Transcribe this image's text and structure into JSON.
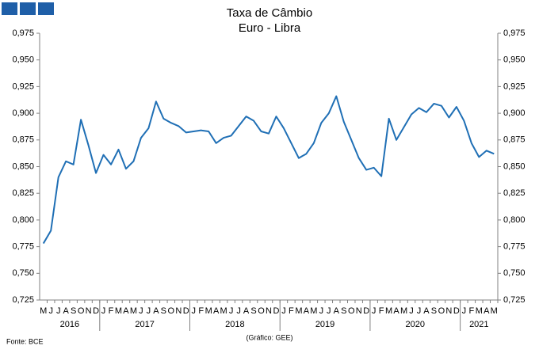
{
  "chart_data": {
    "type": "line",
    "title": "Taxa de Câmbio",
    "subtitle": "Euro - Libra",
    "source": "Fonte: BCE",
    "credit": "(Gráfico: GEE)",
    "categories": [
      "M",
      "J",
      "J",
      "A",
      "S",
      "O",
      "N",
      "D",
      "J",
      "F",
      "M",
      "A",
      "M",
      "J",
      "J",
      "A",
      "S",
      "O",
      "N",
      "D",
      "J",
      "F",
      "M",
      "A",
      "M",
      "J",
      "J",
      "A",
      "S",
      "O",
      "N",
      "D",
      "J",
      "F",
      "M",
      "A",
      "M",
      "J",
      "J",
      "A",
      "S",
      "O",
      "N",
      "D",
      "J",
      "F",
      "M",
      "A",
      "M",
      "J",
      "J",
      "A",
      "S",
      "O",
      "N",
      "D",
      "J",
      "F",
      "M",
      "A",
      "M"
    ],
    "years": [
      "2016",
      "2017",
      "2018",
      "2019",
      "2020",
      "2021"
    ],
    "series": [
      {
        "color": "#1f6fb5",
        "values": [
          0.778,
          0.79,
          0.84,
          0.855,
          0.852,
          0.894,
          0.87,
          0.844,
          0.861,
          0.852,
          0.866,
          0.848,
          0.855,
          0.877,
          0.886,
          0.911,
          0.895,
          0.891,
          0.888,
          0.882,
          0.883,
          0.884,
          0.883,
          0.872,
          0.877,
          0.879,
          0.888,
          0.897,
          0.893,
          0.883,
          0.881,
          0.897,
          0.886,
          0.872,
          0.858,
          0.862,
          0.872,
          0.891,
          0.9,
          0.916,
          0.892,
          0.875,
          0.858,
          0.847,
          0.849,
          0.841,
          0.895,
          0.875,
          0.887,
          0.899,
          0.905,
          0.901,
          0.909,
          0.907,
          0.896,
          0.906,
          0.893,
          0.872,
          0.859,
          0.865,
          0.862
        ]
      }
    ],
    "ylim": [
      0.725,
      0.975
    ],
    "yticks": [
      {
        "value": 0.725,
        "label": "0,725"
      },
      {
        "value": 0.75,
        "label": "0,750"
      },
      {
        "value": 0.775,
        "label": "0,775"
      },
      {
        "value": 0.8,
        "label": "0,800"
      },
      {
        "value": 0.825,
        "label": "0,825"
      },
      {
        "value": 0.85,
        "label": "0,850"
      },
      {
        "value": 0.875,
        "label": "0,875"
      },
      {
        "value": 0.9,
        "label": "0,900"
      },
      {
        "value": 0.925,
        "label": "0,925"
      },
      {
        "value": 0.95,
        "label": "0,950"
      },
      {
        "value": 0.975,
        "label": "0,975"
      }
    ],
    "y2lim": [
      0.725,
      0.975
    ],
    "y2ticks": [
      {
        "value": 0.725,
        "label": "0,725"
      },
      {
        "value": 0.75,
        "label": "0,750"
      },
      {
        "value": 0.775,
        "label": "0,775"
      },
      {
        "value": 0.8,
        "label": "0,800"
      },
      {
        "value": 0.825,
        "label": "0,825"
      },
      {
        "value": 0.85,
        "label": "0,850"
      },
      {
        "value": 0.875,
        "label": "0,875"
      },
      {
        "value": 0.9,
        "label": "0,900"
      },
      {
        "value": 0.925,
        "label": "0,925"
      },
      {
        "value": 0.95,
        "label": "0,950"
      },
      {
        "value": 0.975,
        "label": "0,975"
      }
    ],
    "grid": false
  }
}
